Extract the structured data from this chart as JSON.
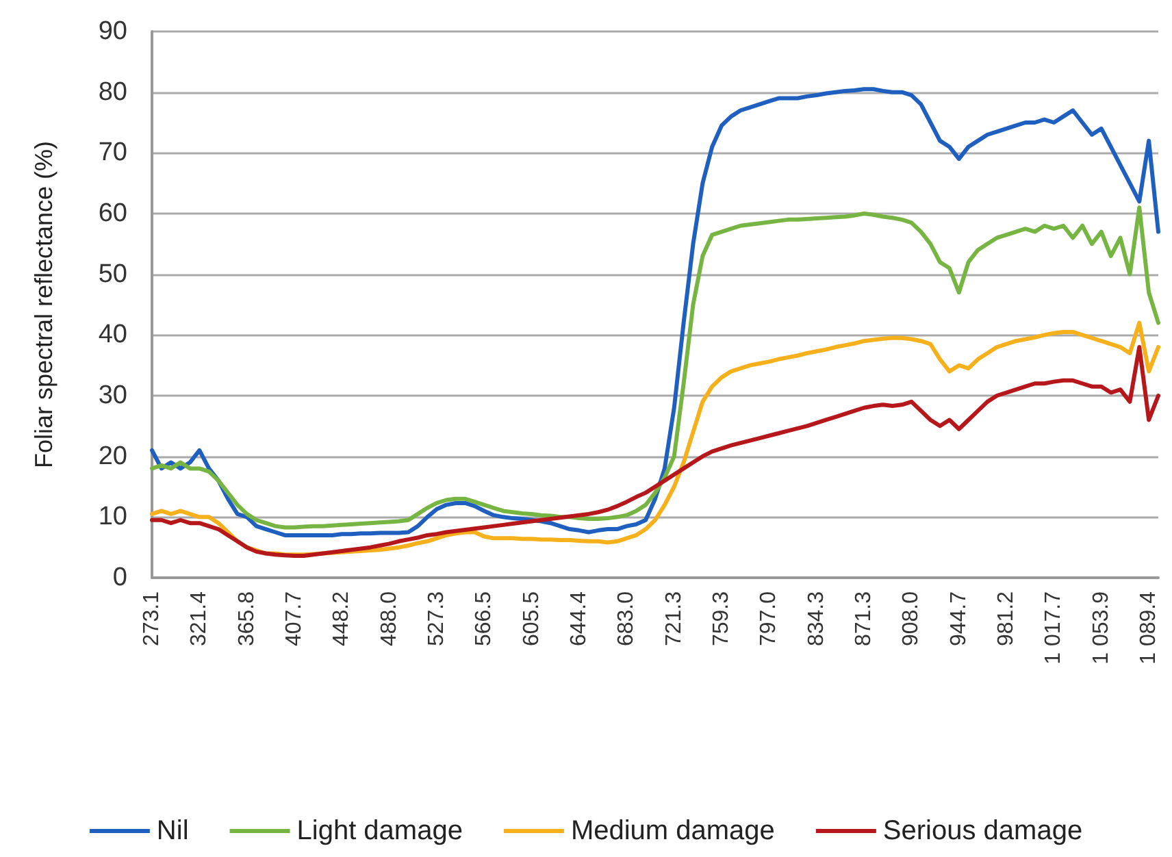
{
  "chart_data": {
    "type": "line",
    "ylabel": "Foliar spectral reflectance (%)",
    "categories": [
      "273.1",
      null,
      null,
      null,
      null,
      "321.4",
      null,
      null,
      null,
      null,
      "365.8",
      null,
      null,
      null,
      null,
      "407.7",
      null,
      null,
      null,
      null,
      "448.2",
      null,
      null,
      null,
      null,
      "488.0",
      null,
      null,
      null,
      null,
      "527.3",
      null,
      null,
      null,
      null,
      "566.5",
      null,
      null,
      null,
      null,
      "605.5",
      null,
      null,
      null,
      null,
      "644.4",
      null,
      null,
      null,
      null,
      "683.0",
      null,
      null,
      null,
      null,
      "721.3",
      null,
      null,
      null,
      null,
      "759.3",
      null,
      null,
      null,
      null,
      "797.0",
      null,
      null,
      null,
      null,
      "834.3",
      null,
      null,
      null,
      null,
      "871.3",
      null,
      null,
      null,
      null,
      "908.0",
      null,
      null,
      null,
      null,
      "944.7",
      null,
      null,
      null,
      null,
      "981.2",
      null,
      null,
      null,
      null,
      "1 017.7",
      null,
      null,
      null,
      null,
      "1 053.9",
      null,
      null,
      null,
      null,
      "1 089.4",
      null
    ],
    "series": [
      {
        "name": "Nil",
        "color": "#1f5fbf",
        "values": [
          21,
          18,
          19,
          18,
          19,
          21,
          18,
          16,
          13,
          10.5,
          10,
          8.5,
          8,
          7.5,
          7,
          7,
          7,
          7,
          7,
          7,
          7.2,
          7.2,
          7.3,
          7.3,
          7.4,
          7.4,
          7.4,
          7.5,
          8.5,
          10,
          11.3,
          12,
          12.3,
          12.3,
          11.8,
          11,
          10.3,
          10,
          9.8,
          9.7,
          9.5,
          9.3,
          9,
          8.5,
          8,
          7.8,
          7.5,
          7.8,
          8,
          8,
          8.5,
          8.8,
          9.5,
          13,
          18,
          28,
          42,
          55,
          65,
          71,
          74.5,
          76,
          77,
          77.5,
          78,
          78.5,
          79,
          79,
          79,
          79.3,
          79.5,
          79.8,
          80,
          80.2,
          80.3,
          80.5,
          80.5,
          80.2,
          80,
          80,
          79.5,
          78,
          75,
          72,
          71,
          69,
          71,
          72,
          73,
          73.5,
          74,
          74.5,
          75,
          75,
          75.5,
          75,
          76,
          77,
          75,
          73,
          74,
          71,
          68,
          65,
          62,
          72,
          57
        ]
      },
      {
        "name": "Light damage",
        "color": "#77b543",
        "values": [
          18,
          18.5,
          18,
          19,
          18,
          18,
          17.5,
          16,
          14,
          12,
          10.5,
          9.5,
          9,
          8.5,
          8.3,
          8.3,
          8.4,
          8.5,
          8.5,
          8.6,
          8.7,
          8.8,
          8.9,
          9,
          9.1,
          9.2,
          9.3,
          9.5,
          10.5,
          11.5,
          12.3,
          12.8,
          13,
          13,
          12.5,
          12,
          11.5,
          11,
          10.8,
          10.6,
          10.5,
          10.3,
          10.2,
          10,
          10,
          9.8,
          9.7,
          9.7,
          9.8,
          10,
          10.3,
          11,
          12,
          14,
          16.5,
          20,
          32,
          45,
          53,
          56.5,
          57,
          57.5,
          58,
          58.2,
          58.4,
          58.6,
          58.8,
          59,
          59,
          59.1,
          59.2,
          59.3,
          59.4,
          59.5,
          59.7,
          60,
          59.8,
          59.5,
          59.3,
          59,
          58.5,
          57,
          55,
          52,
          51,
          47,
          52,
          54,
          55,
          56,
          56.5,
          57,
          57.5,
          57,
          58,
          57.5,
          58,
          56,
          58,
          55,
          57,
          53,
          56,
          50,
          61,
          47,
          42
        ]
      },
      {
        "name": "Medium damage",
        "color": "#f5b01c",
        "values": [
          10.5,
          11,
          10.5,
          11,
          10.5,
          10,
          10,
          9,
          7.5,
          6,
          5,
          4.5,
          4,
          4,
          3.8,
          3.8,
          3.8,
          3.9,
          4,
          4.1,
          4.2,
          4.3,
          4.4,
          4.5,
          4.6,
          4.8,
          5,
          5.3,
          5.7,
          6,
          6.5,
          7,
          7.3,
          7.5,
          7.5,
          6.8,
          6.5,
          6.5,
          6.5,
          6.4,
          6.4,
          6.3,
          6.3,
          6.2,
          6.2,
          6.1,
          6,
          6,
          5.8,
          6,
          6.5,
          7,
          8,
          9.5,
          12,
          15,
          19,
          24,
          29,
          31.5,
          33,
          34,
          34.5,
          35,
          35.3,
          35.6,
          36,
          36.3,
          36.6,
          37,
          37.3,
          37.6,
          38,
          38.3,
          38.6,
          39,
          39.2,
          39.4,
          39.5,
          39.5,
          39.3,
          39,
          38.5,
          36,
          34,
          35,
          34.5,
          36,
          37,
          38,
          38.5,
          39,
          39.3,
          39.6,
          40,
          40.3,
          40.5,
          40.5,
          40,
          39.5,
          39,
          38.5,
          38,
          37,
          42,
          34,
          38
        ]
      },
      {
        "name": "Serious damage",
        "color": "#b5171b",
        "values": [
          9.5,
          9.5,
          9,
          9.5,
          9,
          9,
          8.5,
          8,
          7,
          6,
          5,
          4.3,
          4,
          3.8,
          3.7,
          3.6,
          3.6,
          3.8,
          4,
          4.2,
          4.4,
          4.6,
          4.8,
          5,
          5.3,
          5.6,
          6,
          6.3,
          6.6,
          7,
          7.2,
          7.5,
          7.7,
          7.9,
          8.1,
          8.3,
          8.5,
          8.7,
          8.9,
          9.1,
          9.3,
          9.5,
          9.7,
          9.9,
          10.1,
          10.3,
          10.5,
          10.8,
          11.2,
          11.8,
          12.5,
          13.3,
          14,
          15,
          16,
          17,
          18,
          19,
          20,
          20.8,
          21.3,
          21.8,
          22.2,
          22.6,
          23,
          23.4,
          23.8,
          24.2,
          24.6,
          25,
          25.5,
          26,
          26.5,
          27,
          27.5,
          28,
          28.3,
          28.5,
          28.3,
          28.5,
          29,
          27.5,
          26,
          25,
          26,
          24.5,
          26,
          27.5,
          29,
          30,
          30.5,
          31,
          31.5,
          32,
          32,
          32.3,
          32.5,
          32.5,
          32,
          31.5,
          31.5,
          30.5,
          31,
          29,
          38,
          26,
          30
        ]
      }
    ],
    "ylim": [
      0,
      90
    ],
    "yticks": [
      0,
      10,
      20,
      30,
      40,
      50,
      60,
      70,
      80,
      90
    ],
    "grid": "y",
    "legend": "bottom",
    "marker": "none",
    "line_style": "solid"
  }
}
